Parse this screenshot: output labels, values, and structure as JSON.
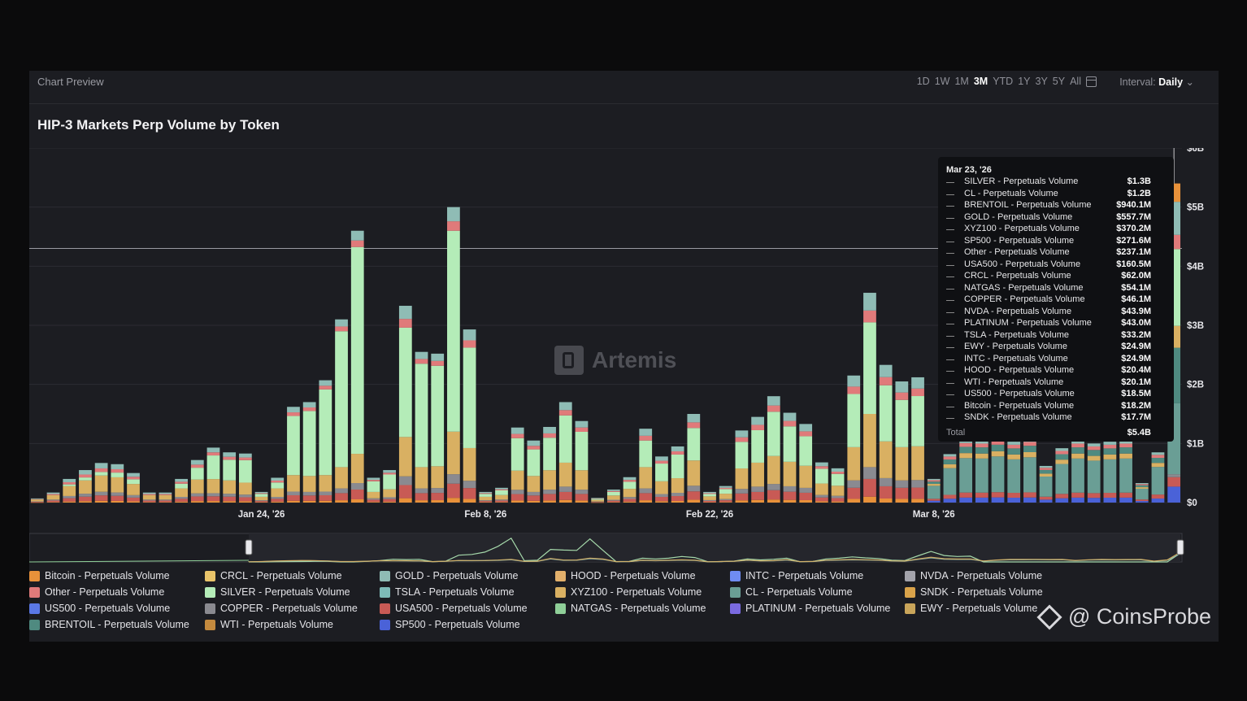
{
  "header": {
    "preview_label": "Chart Preview",
    "ranges": [
      "1D",
      "1W",
      "1M",
      "3M",
      "YTD",
      "1Y",
      "3Y",
      "5Y",
      "All"
    ],
    "selected_range": "3M",
    "interval_label": "Interval:",
    "interval_value": "Daily"
  },
  "watermark": "Artemis",
  "brand": "@ CoinsProbe",
  "tooltip": {
    "date": "Mar 23, '26",
    "rows": [
      {
        "name": "SILVER - Perpetuals Volume",
        "value": "$1.3B"
      },
      {
        "name": "CL - Perpetuals Volume",
        "value": "$1.2B"
      },
      {
        "name": "BRENTOIL - Perpetuals Volume",
        "value": "$940.1M"
      },
      {
        "name": "GOLD - Perpetuals Volume",
        "value": "$557.7M"
      },
      {
        "name": "XYZ100 - Perpetuals Volume",
        "value": "$370.2M"
      },
      {
        "name": "SP500 - Perpetuals Volume",
        "value": "$271.6M"
      },
      {
        "name": "Other - Perpetuals Volume",
        "value": "$237.1M"
      },
      {
        "name": "USA500 - Perpetuals Volume",
        "value": "$160.5M"
      },
      {
        "name": "CRCL - Perpetuals Volume",
        "value": "$62.0M"
      },
      {
        "name": "NATGAS - Perpetuals Volume",
        "value": "$54.1M"
      },
      {
        "name": "COPPER - Perpetuals Volume",
        "value": "$46.1M"
      },
      {
        "name": "NVDA - Perpetuals Volume",
        "value": "$43.9M"
      },
      {
        "name": "PLATINUM - Perpetuals Volume",
        "value": "$43.0M"
      },
      {
        "name": "TSLA - Perpetuals Volume",
        "value": "$33.2M"
      },
      {
        "name": "EWY - Perpetuals Volume",
        "value": "$24.9M"
      },
      {
        "name": "INTC - Perpetuals Volume",
        "value": "$24.9M"
      },
      {
        "name": "HOOD - Perpetuals Volume",
        "value": "$20.4M"
      },
      {
        "name": "WTI - Perpetuals Volume",
        "value": "$20.1M"
      },
      {
        "name": "US500 - Perpetuals Volume",
        "value": "$18.5M"
      },
      {
        "name": "Bitcoin - Perpetuals Volume",
        "value": "$18.2M"
      },
      {
        "name": "SNDK - Perpetuals Volume",
        "value": "$17.7M"
      }
    ],
    "total_label": "Total",
    "total_value": "$5.4B"
  },
  "legend": [
    {
      "label": "Bitcoin - Perpetuals Volume",
      "color": "#e8913a"
    },
    {
      "label": "CRCL - Perpetuals Volume",
      "color": "#e9c46a"
    },
    {
      "label": "GOLD - Perpetuals Volume",
      "color": "#8fbcb5"
    },
    {
      "label": "HOOD - Perpetuals Volume",
      "color": "#e3b06b"
    },
    {
      "label": "INTC - Perpetuals Volume",
      "color": "#6f8cf2"
    },
    {
      "label": "NVDA - Perpetuals Volume",
      "color": "#a2a2aa"
    },
    {
      "label": "Other - Perpetuals Volume",
      "color": "#e07a7a"
    },
    {
      "label": "SILVER - Perpetuals Volume",
      "color": "#b4ecb8"
    },
    {
      "label": "TSLA - Perpetuals Volume",
      "color": "#7ebbb8"
    },
    {
      "label": "XYZ100 - Perpetuals Volume",
      "color": "#d9b062"
    },
    {
      "label": "CL - Perpetuals Volume",
      "color": "#6a9e95"
    },
    {
      "label": "SNDK - Perpetuals Volume",
      "color": "#d9a34a"
    },
    {
      "label": "US500 - Perpetuals Volume",
      "color": "#5a78e6"
    },
    {
      "label": "COPPER - Perpetuals Volume",
      "color": "#8a8a90"
    },
    {
      "label": "USA500 - Perpetuals Volume",
      "color": "#c85a55"
    },
    {
      "label": "NATGAS - Perpetuals Volume",
      "color": "#8fcf98"
    },
    {
      "label": "PLATINUM - Perpetuals Volume",
      "color": "#7a6ae0"
    },
    {
      "label": "EWY - Perpetuals Volume",
      "color": "#c9a55a"
    },
    {
      "label": "BRENTOIL - Perpetuals Volume",
      "color": "#4f8a80"
    },
    {
      "label": "WTI - Perpetuals Volume",
      "color": "#c48a3e"
    },
    {
      "label": "SP500 - Perpetuals Volume",
      "color": "#4a62d8"
    }
  ],
  "chart_data": {
    "type": "bar",
    "stacked": true,
    "title": "HIP-3 Markets Perp Volume by Token",
    "yunit": "USD (billions)",
    "ylim": [
      0,
      6
    ],
    "yticks": [
      {
        "v": 0,
        "label": "$0"
      },
      {
        "v": 1,
        "label": "$1B"
      },
      {
        "v": 2,
        "label": "$2B"
      },
      {
        "v": 3,
        "label": "$3B"
      },
      {
        "v": 4,
        "label": "$4B"
      },
      {
        "v": 5,
        "label": "$5B"
      },
      {
        "v": 6,
        "label": "$6B"
      }
    ],
    "xticks": [
      {
        "index": 14,
        "label": "Jan 24, '26"
      },
      {
        "index": 28,
        "label": "Feb 8, '26"
      },
      {
        "index": 42,
        "label": "Feb 22, '26"
      },
      {
        "index": 56,
        "label": "Mar 8, '26"
      }
    ],
    "crosshair_y": 4.3,
    "highlight_index": 71,
    "series_colors": {
      "CL": "#6a9e95",
      "BRENTOIL": "#4f8a80",
      "SP500": "#4a62d8",
      "USA500": "#c85a55",
      "XYZ100": "#d9b062",
      "Other": "#e07a7a",
      "SILVER": "#b4ecb8",
      "GOLD": "#8fbcb5",
      "COPPER": "#8a8a90",
      "Bitcoin": "#e8913a"
    },
    "days": [
      {
        "t": 0.07,
        "silver": 0.0
      },
      {
        "t": 0.17,
        "silver": 0.0
      },
      {
        "t": 0.4,
        "silver": 0.03
      },
      {
        "t": 0.55,
        "silver": 0.05
      },
      {
        "t": 0.67,
        "silver": 0.06
      },
      {
        "t": 0.65,
        "silver": 0.08
      },
      {
        "t": 0.5,
        "silver": 0.08
      },
      {
        "t": 0.17,
        "silver": 0.0
      },
      {
        "t": 0.17,
        "silver": 0.0
      },
      {
        "t": 0.4,
        "silver": 0.08
      },
      {
        "t": 0.72,
        "silver": 0.2
      },
      {
        "t": 0.93,
        "silver": 0.4
      },
      {
        "t": 0.85,
        "silver": 0.35
      },
      {
        "t": 0.83,
        "silver": 0.38
      },
      {
        "t": 0.18,
        "silver": 0.05
      },
      {
        "t": 0.42,
        "silver": 0.1
      },
      {
        "t": 1.62,
        "silver": 1.0
      },
      {
        "t": 1.7,
        "silver": 1.1
      },
      {
        "t": 2.07,
        "silver": 1.45
      },
      {
        "t": 3.1,
        "silver": 2.3
      },
      {
        "t": 4.6,
        "silver": 3.5
      },
      {
        "t": 0.42,
        "silver": 0.18
      },
      {
        "t": 0.55,
        "silver": 0.25
      },
      {
        "t": 3.33,
        "silver": 1.85
      },
      {
        "t": 2.55,
        "silver": 1.75
      },
      {
        "t": 2.52,
        "silver": 1.7
      },
      {
        "t": 5.0,
        "silver": 3.4
      },
      {
        "t": 2.93,
        "silver": 1.7
      },
      {
        "t": 0.18,
        "silver": 0.05
      },
      {
        "t": 0.25,
        "silver": 0.08
      },
      {
        "t": 1.27,
        "silver": 0.55
      },
      {
        "t": 1.05,
        "silver": 0.45
      },
      {
        "t": 1.28,
        "silver": 0.55
      },
      {
        "t": 1.7,
        "silver": 0.8
      },
      {
        "t": 1.38,
        "silver": 0.65
      },
      {
        "t": 0.08,
        "silver": 0.02
      },
      {
        "t": 0.22,
        "silver": 0.06
      },
      {
        "t": 0.43,
        "silver": 0.12
      },
      {
        "t": 1.25,
        "silver": 0.45
      },
      {
        "t": 0.78,
        "silver": 0.3
      },
      {
        "t": 0.95,
        "silver": 0.4
      },
      {
        "t": 1.5,
        "silver": 0.55
      },
      {
        "t": 0.18,
        "silver": 0.04
      },
      {
        "t": 0.28,
        "silver": 0.08
      },
      {
        "t": 1.22,
        "silver": 0.45
      },
      {
        "t": 1.45,
        "silver": 0.55
      },
      {
        "t": 1.8,
        "silver": 0.75
      },
      {
        "t": 1.52,
        "silver": 0.6
      },
      {
        "t": 1.33,
        "silver": 0.5
      },
      {
        "t": 0.68,
        "silver": 0.25
      },
      {
        "t": 0.58,
        "silver": 0.2
      },
      {
        "t": 2.15,
        "silver": 0.9
      },
      {
        "t": 3.55,
        "silver": 1.55
      },
      {
        "t": 2.33,
        "silver": 0.95
      },
      {
        "t": 2.05,
        "silver": 0.8
      },
      {
        "t": 2.12,
        "silver": 0.85
      },
      {
        "t": 0.4,
        "silver": 0.0
      },
      {
        "t": 0.82,
        "silver": 0.0
      },
      {
        "t": 1.06,
        "silver": 0.0
      },
      {
        "t": 1.05,
        "silver": 0.0
      },
      {
        "t": 1.1,
        "silver": 0.0
      },
      {
        "t": 1.03,
        "silver": 0.0
      },
      {
        "t": 1.08,
        "silver": 0.0
      },
      {
        "t": 0.62,
        "silver": 0.0
      },
      {
        "t": 0.92,
        "silver": 0.0
      },
      {
        "t": 1.05,
        "silver": 0.0
      },
      {
        "t": 1.0,
        "silver": 0.0
      },
      {
        "t": 1.03,
        "silver": 0.0
      },
      {
        "t": 1.05,
        "silver": 0.0
      },
      {
        "t": 0.33,
        "silver": 0.0
      },
      {
        "t": 0.85,
        "silver": 0.0
      },
      {
        "t": 5.4,
        "silver": 1.3
      }
    ]
  }
}
